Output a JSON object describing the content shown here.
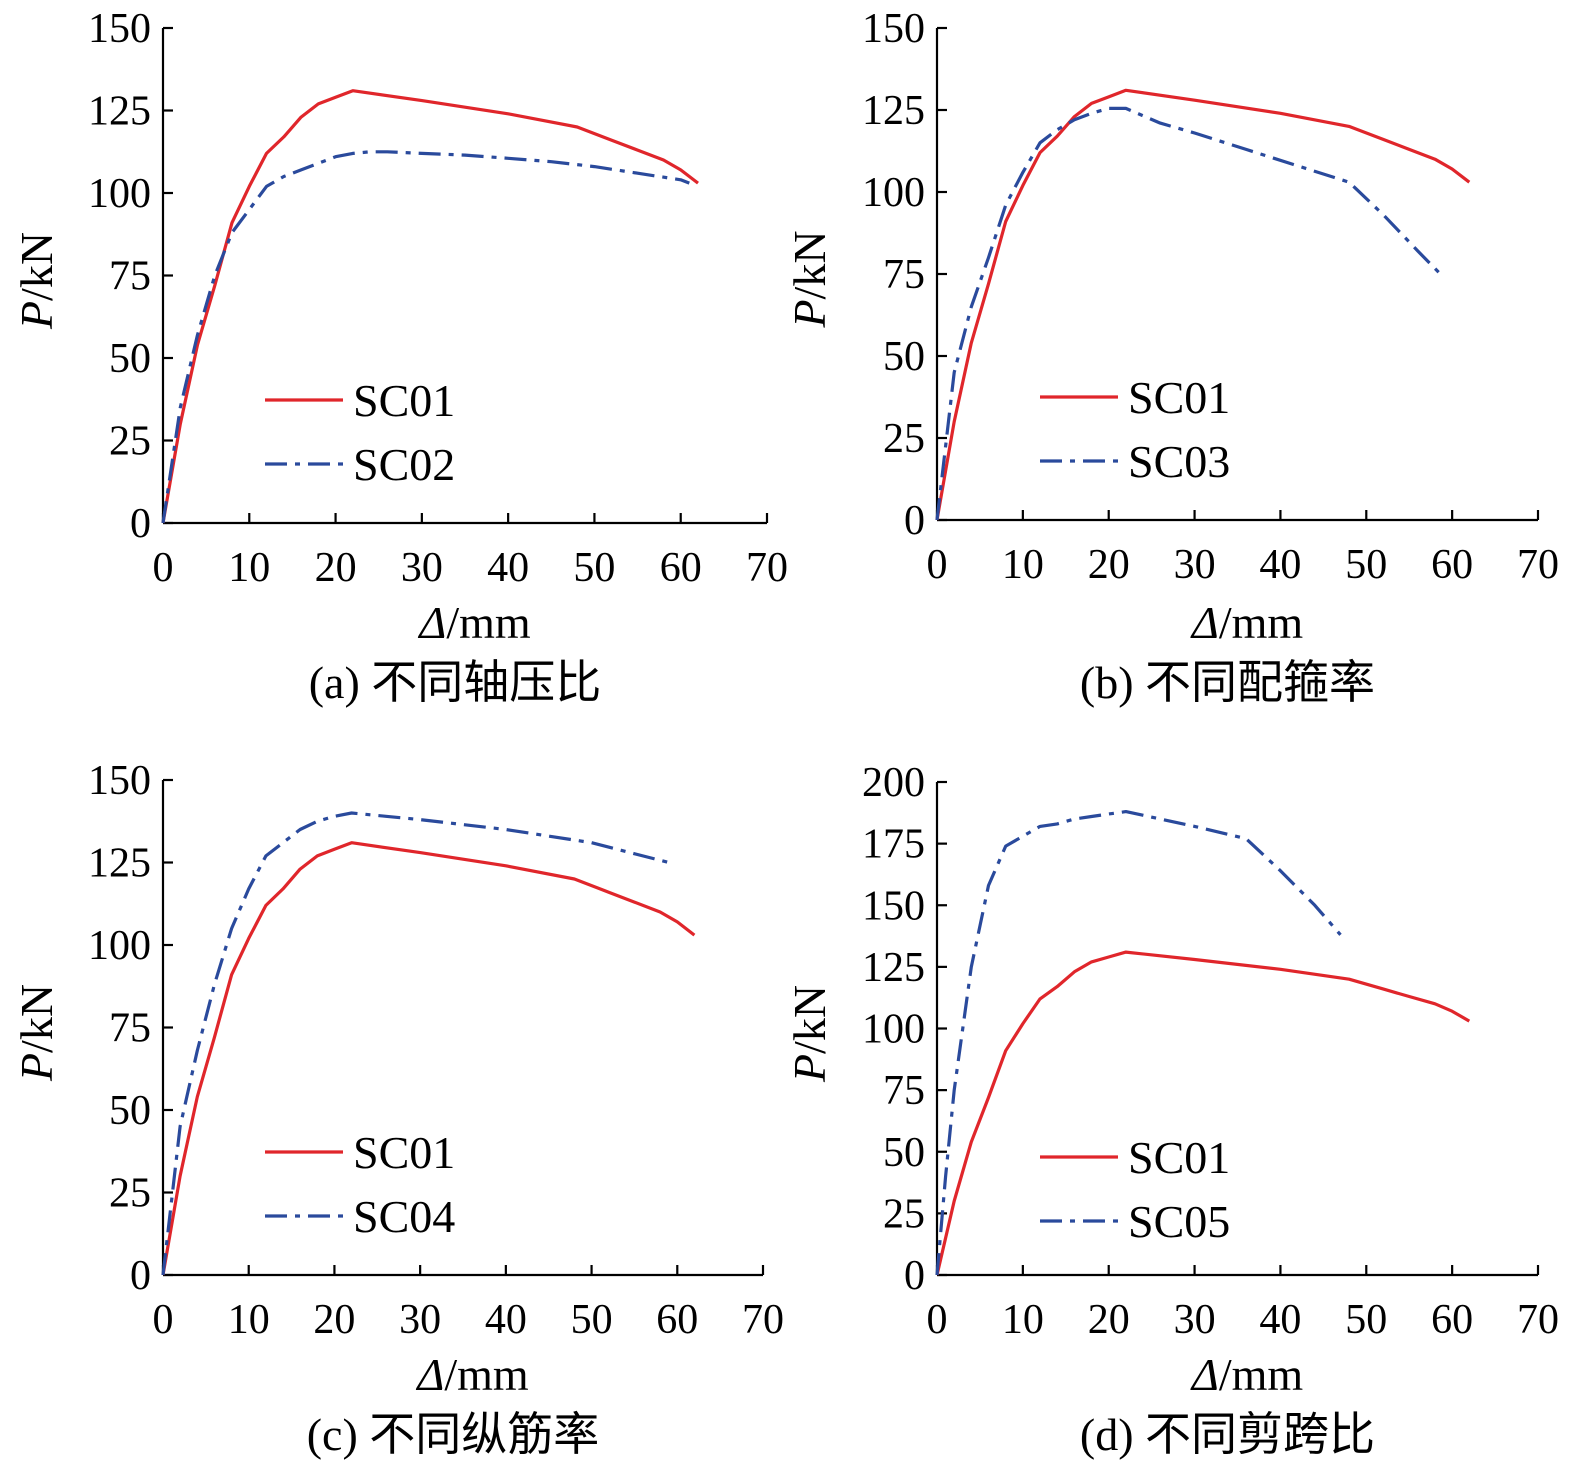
{
  "chart_data": [
    {
      "type": "line",
      "caption": "(a) 不同轴压比",
      "ylabel_italic": "P",
      "ylabel_unit": "/kN",
      "xlabel_italic": "Δ",
      "xlabel_unit": "/mm",
      "xlim": [
        0,
        70
      ],
      "ylim": [
        0,
        150
      ],
      "xticks": [
        "0",
        "10",
        "20",
        "30",
        "40",
        "50",
        "60",
        "70"
      ],
      "yticks": [
        "0",
        "25",
        "50",
        "75",
        "100",
        "125",
        "150"
      ],
      "legend_position": "center-left",
      "series": [
        {
          "name": "SC01",
          "color": "#e0262b",
          "style": "solid",
          "x": [
            0,
            2,
            4,
            6,
            8,
            10,
            12,
            14,
            16,
            18,
            20,
            22,
            30,
            40,
            48,
            52,
            55,
            58,
            60,
            62
          ],
          "y": [
            0,
            30,
            54,
            72,
            91,
            102,
            112,
            117,
            123,
            127,
            129,
            131,
            128,
            124,
            120,
            116,
            113,
            110,
            107,
            103
          ]
        },
        {
          "name": "SC02",
          "color": "#2a4a9c",
          "style": "dashdot",
          "x": [
            0,
            2,
            4,
            6,
            8,
            10,
            12,
            14,
            16,
            18,
            20,
            22,
            24,
            26,
            30,
            35,
            40,
            45,
            50,
            55,
            60,
            61
          ],
          "y": [
            0,
            35,
            57,
            75,
            88,
            95,
            102,
            105,
            107,
            109,
            111,
            112,
            112.5,
            112.5,
            112,
            111.5,
            110.5,
            109.5,
            108,
            106,
            104,
            103
          ]
        }
      ]
    },
    {
      "type": "line",
      "caption": "(b) 不同配箍率",
      "ylabel_italic": "P",
      "ylabel_unit": "/kN",
      "xlabel_italic": "Δ",
      "xlabel_unit": "/mm",
      "xlim": [
        0,
        70
      ],
      "ylim": [
        0,
        150
      ],
      "xticks": [
        "0",
        "10",
        "20",
        "30",
        "40",
        "50",
        "60",
        "70"
      ],
      "yticks": [
        "0",
        "25",
        "50",
        "75",
        "100",
        "125",
        "150"
      ],
      "legend_position": "center-left",
      "series": [
        {
          "name": "SC01",
          "color": "#e0262b",
          "style": "solid",
          "x": [
            0,
            2,
            4,
            6,
            8,
            10,
            12,
            14,
            16,
            18,
            20,
            22,
            30,
            40,
            48,
            52,
            55,
            58,
            60,
            62
          ],
          "y": [
            0,
            30,
            54,
            72,
            91,
            102,
            112,
            117,
            123,
            127,
            129,
            131,
            128,
            124,
            120,
            116,
            113,
            110,
            107,
            103
          ]
        },
        {
          "name": "SC03",
          "color": "#2a4a9c",
          "style": "dashdot",
          "x": [
            0,
            2,
            4,
            6,
            8,
            10,
            12,
            14,
            16,
            18,
            20,
            22,
            26,
            30,
            36,
            42,
            48,
            52,
            56,
            59
          ],
          "y": [
            0,
            45,
            65,
            80,
            96,
            106,
            115,
            119,
            122,
            124,
            125.5,
            125.5,
            121,
            118,
            113,
            108,
            103,
            93,
            82,
            74
          ]
        }
      ]
    },
    {
      "type": "line",
      "caption": "(c) 不同纵筋率",
      "ylabel_italic": "P",
      "ylabel_unit": "/kN",
      "xlabel_italic": "Δ",
      "xlabel_unit": "/mm",
      "xlim": [
        0,
        70
      ],
      "ylim": [
        0,
        150
      ],
      "xticks": [
        "0",
        "10",
        "20",
        "30",
        "40",
        "50",
        "60",
        "70"
      ],
      "yticks": [
        "0",
        "25",
        "50",
        "75",
        "100",
        "125",
        "150"
      ],
      "legend_position": "lower-left",
      "series": [
        {
          "name": "SC01",
          "color": "#e0262b",
          "style": "solid",
          "x": [
            0,
            2,
            4,
            6,
            8,
            10,
            12,
            14,
            16,
            18,
            20,
            22,
            30,
            40,
            48,
            52,
            55,
            58,
            60,
            62
          ],
          "y": [
            0,
            30,
            54,
            72,
            91,
            102,
            112,
            117,
            123,
            127,
            129,
            131,
            128,
            124,
            120,
            116,
            113,
            110,
            107,
            103
          ]
        },
        {
          "name": "SC04",
          "color": "#2a4a9c",
          "style": "dashdot",
          "x": [
            0,
            2,
            4,
            6,
            8,
            10,
            12,
            14,
            16,
            18,
            20,
            22,
            26,
            30,
            40,
            50,
            59
          ],
          "y": [
            0,
            45,
            68,
            88,
            105,
            117,
            127,
            131,
            135,
            137.5,
            139,
            140,
            139,
            138,
            135,
            131,
            125
          ]
        }
      ]
    },
    {
      "type": "line",
      "caption": "(d) 不同剪跨比",
      "ylabel_italic": "P",
      "ylabel_unit": "/kN",
      "xlabel_italic": "Δ",
      "xlabel_unit": "/mm",
      "xlim": [
        0,
        70
      ],
      "ylim": [
        0,
        200
      ],
      "xticks": [
        "0",
        "10",
        "20",
        "30",
        "40",
        "50",
        "60",
        "70"
      ],
      "yticks": [
        "0",
        "25",
        "50",
        "75",
        "100",
        "125",
        "150",
        "175",
        "200"
      ],
      "legend_position": "lower-left",
      "series": [
        {
          "name": "SC01",
          "color": "#e0262b",
          "style": "solid",
          "x": [
            0,
            2,
            4,
            6,
            8,
            10,
            12,
            14,
            16,
            18,
            20,
            22,
            30,
            40,
            48,
            52,
            55,
            58,
            60,
            62
          ],
          "y": [
            0,
            30,
            54,
            72,
            91,
            102,
            112,
            117,
            123,
            127,
            129,
            131,
            128,
            124,
            120,
            116,
            113,
            110,
            107,
            103
          ]
        },
        {
          "name": "SC05",
          "color": "#2a4a9c",
          "style": "dashdot",
          "x": [
            0,
            1,
            2,
            4,
            6,
            8,
            10,
            12,
            14,
            16,
            18,
            20,
            22,
            26,
            30,
            36,
            40,
            44,
            47
          ],
          "y": [
            0,
            40,
            75,
            125,
            158,
            174,
            178,
            182,
            183,
            185,
            186,
            187,
            188,
            185,
            182,
            177,
            164,
            150,
            138
          ]
        }
      ]
    }
  ]
}
